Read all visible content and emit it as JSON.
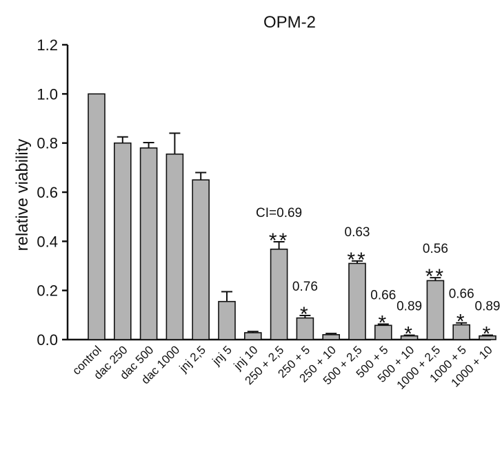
{
  "chart_data": {
    "type": "bar",
    "title": "OPM-2",
    "xlabel": "",
    "ylabel": "relative viability",
    "ylim": [
      0,
      1.2
    ],
    "yticks": [
      "0.0",
      "0.2",
      "0.4",
      "0.6",
      "0.8",
      "1.0",
      "1.2"
    ],
    "ytick_values": [
      0,
      0.2,
      0.4,
      0.6,
      0.8,
      1.0,
      1.2
    ],
    "grid": false,
    "legend": "none",
    "bar_color": "#b3b3b3",
    "categories": [
      "control",
      "dac 250",
      "dac 500",
      "dac 1000",
      "jnj 2,5",
      "jnj 5",
      "jnj 10",
      "250 + 2,5",
      "250 + 5",
      "250 + 10",
      "500 + 2,5",
      "500 + 5",
      "500 + 10",
      "1000 + 2,5",
      "1000 + 5",
      "1000 + 10"
    ],
    "values": [
      1.0,
      0.8,
      0.78,
      0.755,
      0.65,
      0.155,
      0.028,
      0.368,
      0.088,
      0.02,
      0.31,
      0.058,
      0.015,
      0.24,
      0.06,
      0.015
    ],
    "errors": [
      0,
      0.025,
      0.022,
      0.085,
      0.03,
      0.04,
      0.005,
      0.03,
      0.01,
      0.005,
      0.01,
      0.005,
      0.003,
      0.012,
      0.008,
      0.003
    ],
    "significance": [
      "",
      "",
      "",
      "",
      "",
      "",
      "",
      "**",
      "*",
      "",
      "**",
      "*",
      "*",
      "**",
      "*",
      "*"
    ],
    "annotations": [
      "",
      "",
      "",
      "",
      "",
      "",
      "",
      "CI=0.69",
      "0.76",
      "",
      "0.63",
      "0.66",
      "0.89",
      "0.56",
      "0.66",
      "0.89"
    ]
  }
}
